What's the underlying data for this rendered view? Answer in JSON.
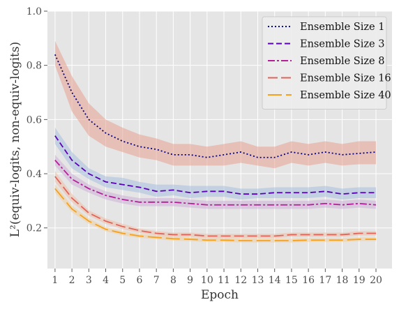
{
  "chart_data": {
    "type": "line",
    "xlabel": "Epoch",
    "ylabel": "L²(equiv-logits, non-equiv-logits)",
    "xlim": [
      0.55,
      20.95
    ],
    "ylim": [
      0.05,
      1.0
    ],
    "y_ticks": [
      0.2,
      0.4,
      0.6,
      0.8,
      1.0
    ],
    "y_tick_labels": [
      "0.2",
      "0.4",
      "0.6",
      "0.8",
      "1.0"
    ],
    "x": [
      1,
      2,
      3,
      4,
      5,
      6,
      7,
      8,
      9,
      10,
      11,
      12,
      13,
      14,
      15,
      16,
      17,
      18,
      19,
      20
    ],
    "x_tick_labels": [
      "1",
      "2",
      "3",
      "4",
      "5",
      "6",
      "7",
      "8",
      "9",
      "10",
      "11",
      "12",
      "13",
      "14",
      "15",
      "16",
      "17",
      "18",
      "19",
      "20"
    ],
    "grid": true,
    "legend_position": "top-right",
    "background": "#e5e5e5",
    "series": [
      {
        "name": "Ensemble Size 1",
        "color": "#00008b",
        "band_color": "#e8a090",
        "dash": "2,3",
        "values": [
          0.84,
          0.7,
          0.6,
          0.55,
          0.52,
          0.5,
          0.49,
          0.47,
          0.47,
          0.46,
          0.47,
          0.48,
          0.46,
          0.46,
          0.48,
          0.47,
          0.48,
          0.47,
          0.475,
          0.48
        ],
        "lower": [
          0.8,
          0.63,
          0.54,
          0.5,
          0.48,
          0.46,
          0.45,
          0.43,
          0.43,
          0.43,
          0.43,
          0.44,
          0.43,
          0.42,
          0.44,
          0.43,
          0.44,
          0.43,
          0.435,
          0.435
        ],
        "upper": [
          0.89,
          0.76,
          0.66,
          0.6,
          0.57,
          0.545,
          0.53,
          0.51,
          0.51,
          0.5,
          0.51,
          0.52,
          0.5,
          0.5,
          0.52,
          0.51,
          0.52,
          0.51,
          0.52,
          0.52
        ]
      },
      {
        "name": "Ensemble Size 3",
        "color": "#5a00b4",
        "band_color": "#a7c0de",
        "dash": "8,4",
        "values": [
          0.54,
          0.45,
          0.4,
          0.37,
          0.36,
          0.35,
          0.335,
          0.34,
          0.33,
          0.335,
          0.335,
          0.325,
          0.325,
          0.33,
          0.33,
          0.33,
          0.335,
          0.325,
          0.33,
          0.33
        ],
        "lower": [
          0.51,
          0.42,
          0.38,
          0.35,
          0.34,
          0.33,
          0.315,
          0.32,
          0.31,
          0.315,
          0.315,
          0.305,
          0.31,
          0.31,
          0.31,
          0.31,
          0.315,
          0.305,
          0.31,
          0.31
        ],
        "upper": [
          0.57,
          0.48,
          0.42,
          0.39,
          0.385,
          0.37,
          0.36,
          0.36,
          0.355,
          0.355,
          0.355,
          0.345,
          0.345,
          0.35,
          0.35,
          0.35,
          0.355,
          0.345,
          0.35,
          0.35
        ]
      },
      {
        "name": "Ensemble Size 8",
        "color": "#b41e96",
        "band_color": "#cdb0d8",
        "dash": "10,3,3,3",
        "values": [
          0.45,
          0.38,
          0.345,
          0.32,
          0.305,
          0.295,
          0.295,
          0.295,
          0.29,
          0.285,
          0.285,
          0.285,
          0.285,
          0.285,
          0.285,
          0.285,
          0.29,
          0.285,
          0.29,
          0.285
        ],
        "lower": [
          0.43,
          0.36,
          0.33,
          0.305,
          0.29,
          0.28,
          0.28,
          0.28,
          0.275,
          0.27,
          0.27,
          0.27,
          0.27,
          0.27,
          0.27,
          0.27,
          0.275,
          0.27,
          0.275,
          0.27
        ],
        "upper": [
          0.47,
          0.4,
          0.36,
          0.335,
          0.32,
          0.31,
          0.31,
          0.31,
          0.305,
          0.3,
          0.3,
          0.3,
          0.3,
          0.3,
          0.3,
          0.3,
          0.305,
          0.3,
          0.305,
          0.3
        ]
      },
      {
        "name": "Ensemble Size 16",
        "color": "#e0645a",
        "band_color": "#eebfa8",
        "dash": "14,5",
        "values": [
          0.39,
          0.31,
          0.255,
          0.225,
          0.205,
          0.19,
          0.18,
          0.175,
          0.175,
          0.17,
          0.17,
          0.17,
          0.17,
          0.17,
          0.175,
          0.175,
          0.175,
          0.175,
          0.18,
          0.18
        ],
        "lower": [
          0.37,
          0.295,
          0.245,
          0.215,
          0.195,
          0.182,
          0.172,
          0.167,
          0.167,
          0.162,
          0.162,
          0.162,
          0.162,
          0.162,
          0.167,
          0.167,
          0.167,
          0.167,
          0.172,
          0.172
        ],
        "upper": [
          0.41,
          0.325,
          0.265,
          0.235,
          0.215,
          0.198,
          0.188,
          0.183,
          0.183,
          0.178,
          0.178,
          0.178,
          0.178,
          0.178,
          0.183,
          0.183,
          0.183,
          0.183,
          0.188,
          0.188
        ]
      },
      {
        "name": "Ensemble Size 40",
        "color": "#f5a01e",
        "band_color": "#f2cf9c",
        "dash": "20,6",
        "values": [
          0.345,
          0.27,
          0.225,
          0.195,
          0.18,
          0.17,
          0.165,
          0.16,
          0.158,
          0.155,
          0.155,
          0.153,
          0.153,
          0.153,
          0.153,
          0.155,
          0.155,
          0.155,
          0.158,
          0.158
        ],
        "lower": [
          0.33,
          0.258,
          0.215,
          0.187,
          0.172,
          0.163,
          0.158,
          0.153,
          0.151,
          0.148,
          0.148,
          0.146,
          0.146,
          0.146,
          0.146,
          0.148,
          0.148,
          0.148,
          0.151,
          0.151
        ],
        "upper": [
          0.36,
          0.282,
          0.235,
          0.203,
          0.188,
          0.177,
          0.172,
          0.167,
          0.165,
          0.162,
          0.162,
          0.16,
          0.16,
          0.16,
          0.16,
          0.162,
          0.162,
          0.162,
          0.165,
          0.165
        ]
      }
    ]
  }
}
